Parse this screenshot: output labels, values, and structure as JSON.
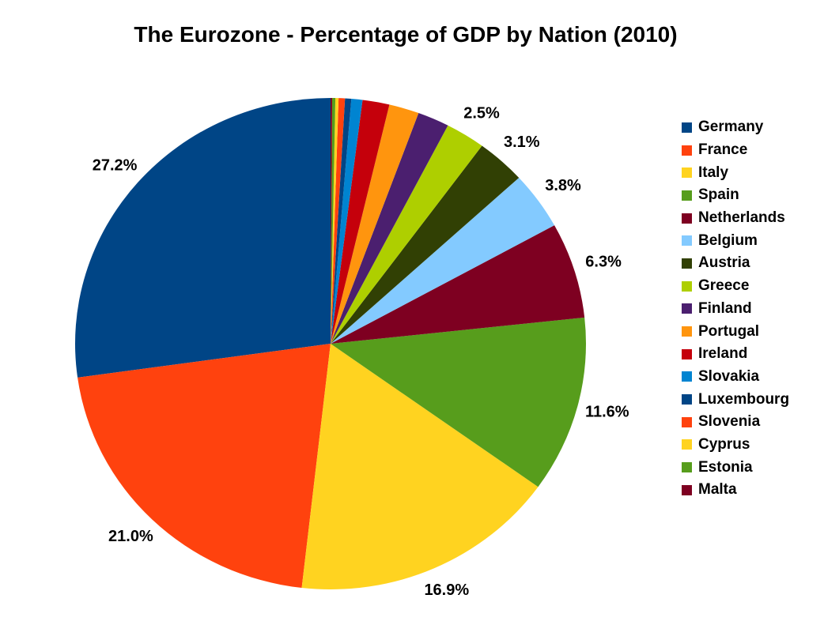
{
  "chart_data": {
    "type": "pie",
    "title": "The Eurozone - Percentage of GDP by Nation (2010)",
    "legend_position": "right",
    "start_angle_deg": 90,
    "direction": "counterclockwise",
    "background_color": "#FFFFFF",
    "text_color": "#000000",
    "slices": [
      {
        "name": "Germany",
        "value": 27.2,
        "label": "27.2%",
        "color": "#004586"
      },
      {
        "name": "France",
        "value": 21.0,
        "label": "21.0%",
        "color": "#FF420E"
      },
      {
        "name": "Italy",
        "value": 16.9,
        "label": "16.9%",
        "color": "#FFD320"
      },
      {
        "name": "Spain",
        "value": 11.6,
        "label": "11.6%",
        "color": "#579D1C"
      },
      {
        "name": "Netherlands",
        "value": 6.3,
        "label": "6.3%",
        "color": "#7E0021"
      },
      {
        "name": "Belgium",
        "value": 3.8,
        "label": "3.8%",
        "color": "#83CAFF"
      },
      {
        "name": "Austria",
        "value": 3.1,
        "label": "3.1%",
        "color": "#314004"
      },
      {
        "name": "Greece",
        "value": 2.5,
        "label": "2.5%",
        "color": "#AECF00"
      },
      {
        "name": "Finland",
        "value": 2.0,
        "label": null,
        "color": "#4B1F6F"
      },
      {
        "name": "Portugal",
        "value": 1.9,
        "label": null,
        "color": "#FF950E"
      },
      {
        "name": "Ireland",
        "value": 1.7,
        "label": null,
        "color": "#C5000B"
      },
      {
        "name": "Slovakia",
        "value": 0.7,
        "label": null,
        "color": "#0084D1"
      },
      {
        "name": "Luxembourg",
        "value": 0.4,
        "label": null,
        "color": "#004586"
      },
      {
        "name": "Slovenia",
        "value": 0.4,
        "label": null,
        "color": "#FF420E"
      },
      {
        "name": "Cyprus",
        "value": 0.2,
        "label": null,
        "color": "#FFD320"
      },
      {
        "name": "Estonia",
        "value": 0.2,
        "label": null,
        "color": "#579D1C"
      },
      {
        "name": "Malta",
        "value": 0.1,
        "label": null,
        "color": "#7E0021"
      }
    ]
  }
}
